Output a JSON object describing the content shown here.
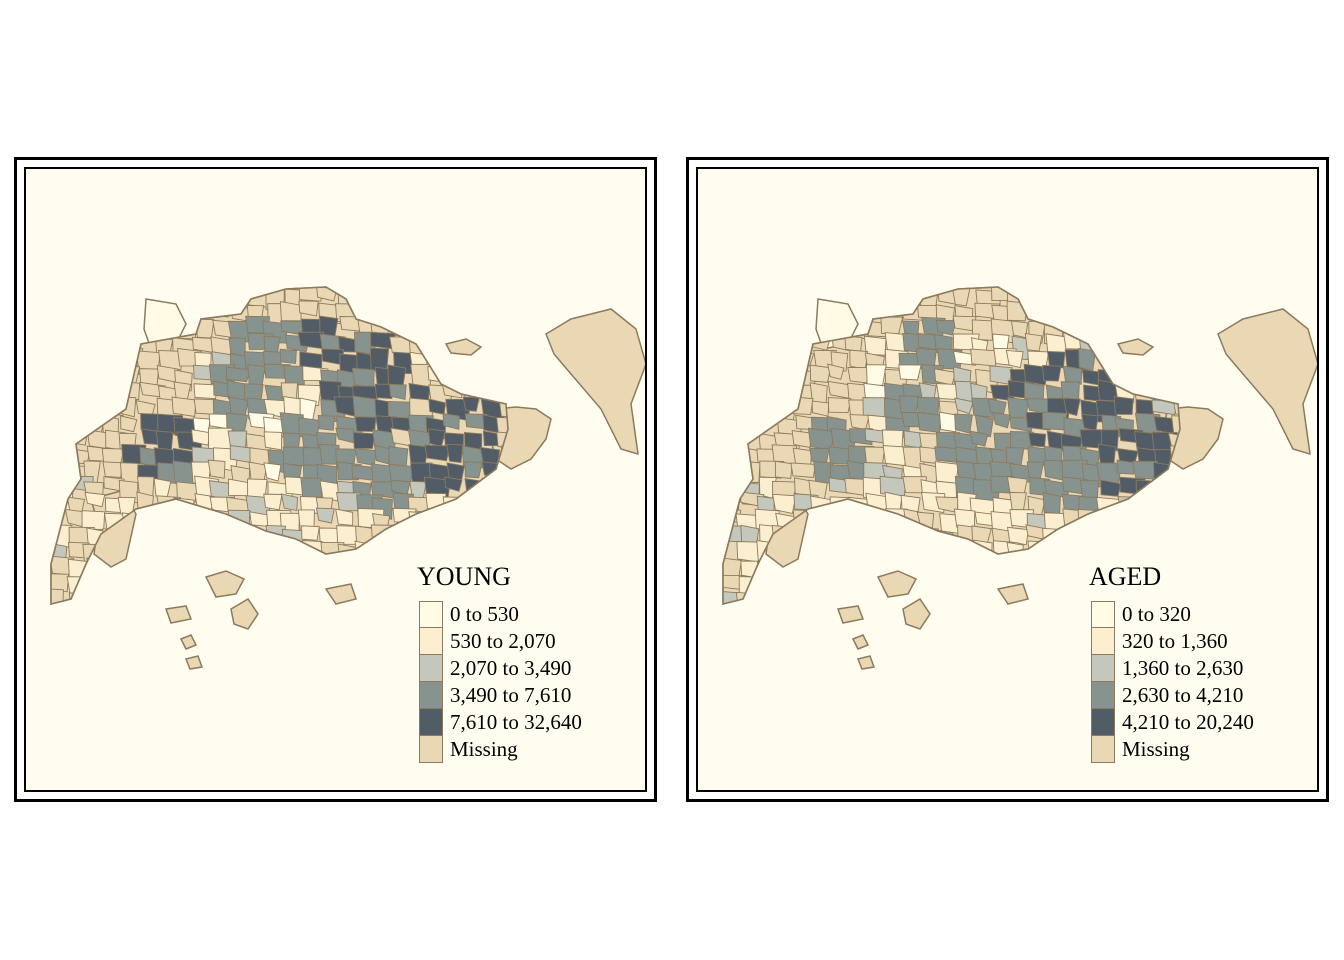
{
  "colors": {
    "background": "#fffdf0",
    "missing": "#ead8b4",
    "border": "#8c7a5e",
    "frame": "#000000"
  },
  "maps": [
    {
      "name": "young",
      "legend": {
        "title": "YOUNG",
        "items": [
          {
            "label": "0 to 530",
            "color": "#fffbe4"
          },
          {
            "label": "530 to 2,070",
            "color": "#fbefd0"
          },
          {
            "label": "2,070 to 3,490",
            "color": "#c4c7bc"
          },
          {
            "label": "3,490 to 7,610",
            "color": "#87938f"
          },
          {
            "label": "7,610 to 32,640",
            "color": "#515c66"
          },
          {
            "label": "Missing",
            "color": "#ead8b4"
          }
        ]
      }
    },
    {
      "name": "aged",
      "legend": {
        "title": "AGED",
        "items": [
          {
            "label": "0 to 320",
            "color": "#fffbe4"
          },
          {
            "label": "320 to 1,360",
            "color": "#fbefd0"
          },
          {
            "label": "1,360 to 2,630",
            "color": "#c4c7bc"
          },
          {
            "label": "2,630 to 4,210",
            "color": "#87938f"
          },
          {
            "label": "4,210 to 20,240",
            "color": "#515c66"
          },
          {
            "label": "Missing",
            "color": "#ead8b4"
          }
        ]
      }
    }
  ]
}
